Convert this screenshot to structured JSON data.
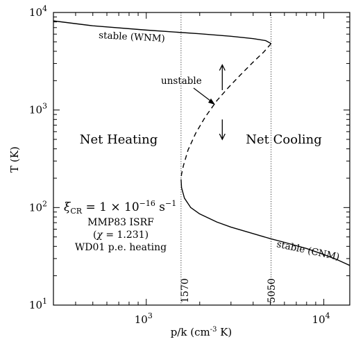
{
  "chart_data": {
    "type": "line",
    "x_scale": "log",
    "y_scale": "log",
    "xlim": [
      300,
      14000
    ],
    "ylim": [
      10,
      10000
    ],
    "xlabel": "p/k (cm",
    "xlabel_sup": "-3",
    "xlabel_end": " K)",
    "ylabel": "T (K)",
    "x_ticks": [
      {
        "base": "10",
        "exp": "3",
        "value": 1000
      },
      {
        "base": "10",
        "exp": "4",
        "value": 10000
      }
    ],
    "y_ticks": [
      {
        "base": "10",
        "exp": "1",
        "value": 10
      },
      {
        "base": "10",
        "exp": "2",
        "value": 100
      },
      {
        "base": "10",
        "exp": "3",
        "value": 1000
      },
      {
        "base": "10",
        "exp": "4",
        "value": 10000
      }
    ],
    "vlines": [
      {
        "x": 1570,
        "label": "1570"
      },
      {
        "x": 5050,
        "label": "5050"
      }
    ],
    "series": [
      {
        "style": "solid",
        "points": [
          [
            300,
            8200
          ],
          [
            500,
            7300
          ],
          [
            1000,
            6600
          ],
          [
            2000,
            6050
          ],
          [
            3000,
            5700
          ],
          [
            4000,
            5400
          ],
          [
            4700,
            5150
          ],
          [
            5050,
            4800
          ]
        ]
      },
      {
        "style": "dashed",
        "points": [
          [
            5050,
            4800
          ],
          [
            4600,
            3950
          ],
          [
            4000,
            3100
          ],
          [
            3400,
            2300
          ],
          [
            2900,
            1700
          ],
          [
            2500,
            1250
          ],
          [
            2150,
            850
          ],
          [
            1900,
            580
          ],
          [
            1720,
            390
          ],
          [
            1620,
            270
          ],
          [
            1580,
            220
          ],
          [
            1570,
            195
          ]
        ]
      },
      {
        "style": "solid",
        "points": [
          [
            1570,
            195
          ],
          [
            1580,
            160
          ],
          [
            1640,
            125
          ],
          [
            1780,
            100
          ],
          [
            2000,
            86
          ],
          [
            2500,
            71
          ],
          [
            3000,
            63
          ],
          [
            4000,
            54
          ],
          [
            5000,
            48
          ],
          [
            6000,
            44
          ],
          [
            8000,
            38
          ],
          [
            10000,
            33
          ],
          [
            12000,
            29
          ],
          [
            14000,
            25.5
          ]
        ]
      }
    ],
    "arrows": [
      {
        "x": 2680,
        "from": 1600,
        "to": 2900
      },
      {
        "x": 2680,
        "from": 800,
        "to": 500
      }
    ],
    "annotations": {
      "stable_wnm": "stable (WNM)",
      "stable_cnm": "stable (CNM)",
      "unstable": "unstable",
      "net_heating": "Net Heating",
      "net_cooling": "Net Cooling",
      "xi_symbol": "ξ",
      "xi_sub": "CR",
      "xi_eq": " = 1 × 10",
      "xi_exp": "−16",
      "xi_unit": " s",
      "xi_unit_exp": "−1",
      "isrf": "MMP83 ISRF",
      "chi_open": "(",
      "chi_symbol": "χ",
      "chi_value": " = 1.231)",
      "heating": "WD01 p.e. heating"
    }
  }
}
